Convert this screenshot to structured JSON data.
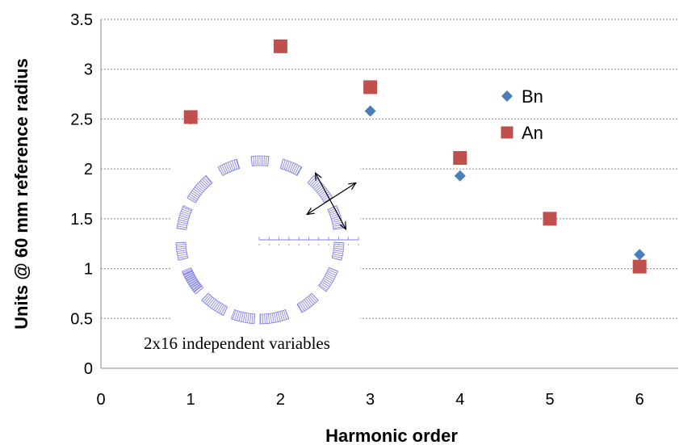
{
  "chart_data": {
    "type": "scatter",
    "title": "",
    "xlabel": "Harmonic order",
    "ylabel": "Units @ 60 mm reference radius",
    "xlim": [
      0,
      6
    ],
    "ylim": [
      0,
      3.5
    ],
    "x_ticks": [
      "0",
      "1",
      "2",
      "3",
      "4",
      "5",
      "6"
    ],
    "y_ticks": [
      "0",
      "0.5",
      "1",
      "1.5",
      "2",
      "2.5",
      "3",
      "3.5"
    ],
    "grid": "horizontal dashed",
    "legend_position": "right",
    "series": [
      {
        "name": "Bn",
        "marker": "diamond",
        "color": "#4a7ebb",
        "x": [
          1,
          3,
          4,
          6
        ],
        "y": [
          2.5,
          2.58,
          1.93,
          1.14
        ]
      },
      {
        "name": "An",
        "marker": "square",
        "color": "#c0504d",
        "x": [
          1,
          2,
          3,
          4,
          5,
          6
        ],
        "y": [
          2.52,
          3.23,
          2.82,
          2.11,
          1.5,
          1.02
        ]
      }
    ],
    "annotation": "2x16 independent variables",
    "inset_color": "#7d7de6"
  }
}
